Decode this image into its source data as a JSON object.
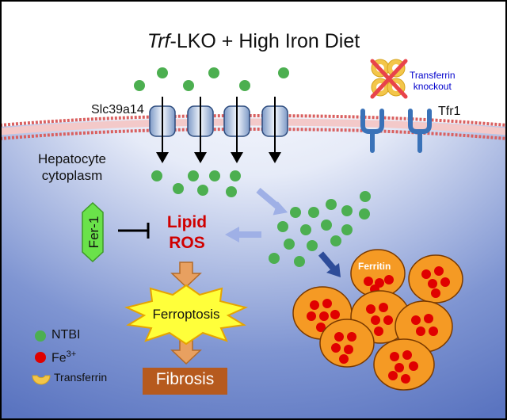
{
  "title": {
    "prefix": "Trf",
    "rest": "-LKO + High Iron Diet"
  },
  "labels": {
    "transporter": "Slc39a14",
    "receptor": "Tfr1",
    "knockout": "Transferrin\nknockout",
    "cytoplasm": "Hepatocyte\ncytoplasm",
    "inhibitor": "Fer-1",
    "ros": "Lipid\nROS",
    "ferritin": "Ferritin",
    "ferroptosis": "Ferroptosis",
    "fibrosis": "Fibrosis"
  },
  "legend": [
    {
      "symbol": "green-dot",
      "label": "NTBI"
    },
    {
      "symbol": "red-dot",
      "label": "Fe",
      "sup": "3+"
    },
    {
      "symbol": "transferrin-icon",
      "label": "Transferrin"
    }
  ],
  "colors": {
    "ntbi": "#4caf50",
    "fe3": "#e00000",
    "ferritin": "#f59a24",
    "ros": "#d00000",
    "fer1": "#6ae24a",
    "fibrosis": "#b65a1e",
    "arrow_light": "#9fb0e6",
    "arrow_dark": "#2e4c99",
    "step_arrow": "#e8a060",
    "receptor": "#3a72b8",
    "knockout_text": "#0000cc"
  }
}
